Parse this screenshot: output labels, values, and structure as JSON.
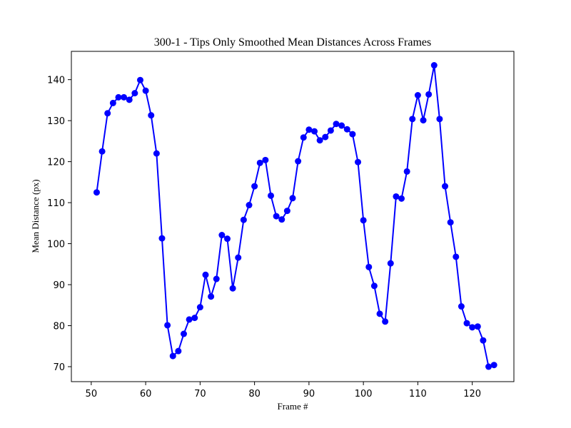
{
  "chart_data": {
    "type": "line",
    "title": "300-1 - Tips Only Smoothed Mean Distances Across Frames",
    "xlabel": "Frame #",
    "ylabel": "Mean Distance (px)",
    "xlim": [
      46.35,
      127.65
    ],
    "ylim": [
      66.35,
      146.9
    ],
    "xticks": [
      50,
      60,
      70,
      80,
      90,
      100,
      110,
      120
    ],
    "yticks": [
      70,
      80,
      90,
      100,
      110,
      120,
      130,
      140
    ],
    "grid": false,
    "color": "#0000ff",
    "series": [
      {
        "x": [
          51,
          52,
          53,
          54,
          55,
          56,
          57,
          58,
          59,
          60,
          61,
          62,
          63,
          64,
          65,
          66,
          67,
          68,
          69,
          70,
          71,
          72,
          73,
          74,
          75,
          76,
          77,
          78,
          79,
          80,
          81,
          82,
          83,
          84,
          85,
          86,
          87,
          88,
          89,
          90,
          91,
          92,
          93,
          94,
          95,
          96,
          97,
          98,
          99,
          100,
          101,
          102,
          103,
          104,
          105,
          106,
          107,
          108,
          109,
          110,
          111,
          112,
          113,
          114,
          115,
          116,
          117,
          118,
          119,
          120,
          121,
          122,
          123,
          124
        ],
        "y": [
          112.5,
          122.5,
          131.8,
          134.3,
          135.7,
          135.7,
          135.1,
          136.7,
          139.9,
          137.3,
          131.3,
          122.0,
          101.3,
          80.1,
          72.6,
          73.8,
          78.0,
          81.5,
          81.9,
          84.5,
          92.4,
          87.1,
          91.4,
          102.1,
          101.2,
          89.1,
          96.6,
          105.8,
          109.4,
          114.0,
          119.7,
          120.4,
          111.7,
          106.7,
          105.9,
          108.0,
          111.1,
          120.1,
          125.9,
          127.8,
          127.4,
          125.2,
          126.0,
          127.6,
          129.2,
          128.8,
          127.9,
          126.7,
          119.9,
          105.7,
          94.3,
          89.7,
          82.9,
          81.0,
          95.2,
          111.5,
          111.0,
          117.6,
          130.4,
          136.2,
          130.1,
          136.4,
          143.5,
          130.4,
          114.0,
          105.2,
          96.8,
          84.7,
          80.6,
          79.6,
          79.8,
          76.4,
          70.0,
          70.4
        ]
      }
    ]
  }
}
